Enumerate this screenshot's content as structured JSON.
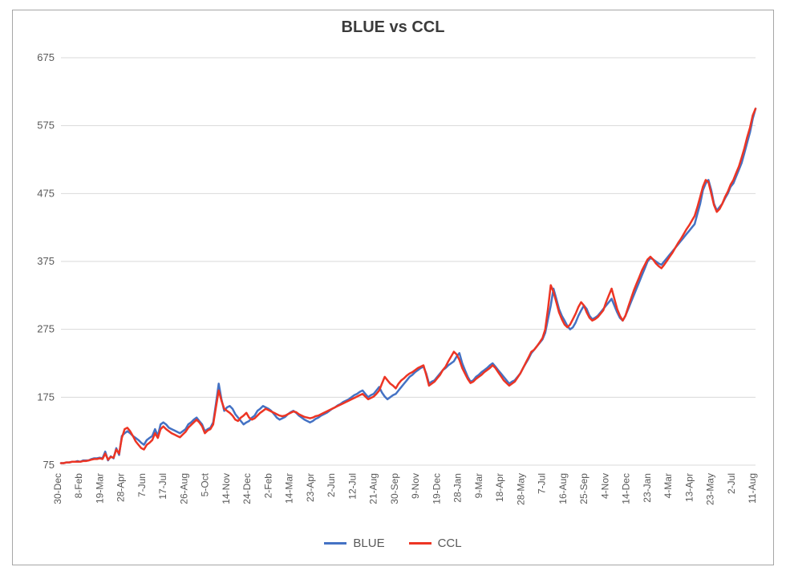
{
  "chart": {
    "type": "line",
    "title": "BLUE vs CCL",
    "title_fontsize": 20,
    "title_bold": true,
    "title_color": "#3b3b3b",
    "background_color": "#ffffff",
    "frame_border_color": "#a6a6a6",
    "plot": {
      "grid_color": "#d9d9d9",
      "grid_width": 1,
      "axis_color": "#d9d9d9",
      "xlim": [
        0,
        31
      ],
      "ylim": [
        75,
        675
      ],
      "yticks": [
        75,
        175,
        275,
        375,
        475,
        575,
        675
      ],
      "ytick_fontsize": 13,
      "ytick_color": "#595959",
      "xtick_fontsize": 12,
      "xtick_color": "#595959",
      "xtick_rotation": -90,
      "xticks": [
        "30-Dec",
        "8-Feb",
        "19-Mar",
        "28-Apr",
        "7-Jun",
        "17-Jul",
        "26-Aug",
        "5-Oct",
        "14-Nov",
        "24-Dec",
        "2-Feb",
        "14-Mar",
        "23-Apr",
        "2-Jun",
        "12-Jul",
        "21-Aug",
        "30-Sep",
        "9-Nov",
        "19-Dec",
        "28-Jan",
        "9-Mar",
        "18-Apr",
        "28-May",
        "7-Jul",
        "16-Aug",
        "25-Sep",
        "4-Nov",
        "14-Dec",
        "23-Jan",
        "4-Mar",
        "13-Apr",
        "23-May",
        "2-Jul",
        "11-Aug"
      ]
    },
    "series": [
      {
        "name": "BLUE",
        "color": "#4472c4",
        "line_width": 2.5,
        "data": [
          78,
          78,
          79,
          79,
          80,
          80,
          81,
          80,
          82,
          82,
          82,
          84,
          85,
          85,
          86,
          85,
          95,
          82,
          88,
          85,
          100,
          90,
          118,
          122,
          125,
          122,
          118,
          115,
          112,
          108,
          105,
          112,
          115,
          118,
          128,
          118,
          135,
          138,
          135,
          130,
          128,
          126,
          124,
          122,
          125,
          128,
          135,
          138,
          142,
          145,
          140,
          135,
          125,
          128,
          130,
          138,
          165,
          195,
          172,
          155,
          160,
          162,
          158,
          150,
          145,
          140,
          135,
          138,
          140,
          145,
          148,
          155,
          158,
          162,
          160,
          158,
          155,
          150,
          145,
          142,
          144,
          146,
          150,
          153,
          155,
          152,
          148,
          145,
          142,
          140,
          138,
          140,
          143,
          145,
          148,
          150,
          152,
          155,
          158,
          160,
          163,
          165,
          168,
          170,
          172,
          175,
          178,
          180,
          183,
          185,
          180,
          175,
          178,
          180,
          185,
          190,
          182,
          176,
          172,
          175,
          178,
          180,
          185,
          190,
          195,
          200,
          205,
          208,
          212,
          215,
          218,
          220,
          210,
          195,
          198,
          200,
          205,
          210,
          215,
          218,
          222,
          225,
          228,
          235,
          240,
          225,
          215,
          205,
          198,
          200,
          205,
          208,
          212,
          215,
          218,
          222,
          225,
          220,
          215,
          210,
          205,
          200,
          195,
          198,
          200,
          205,
          210,
          218,
          225,
          232,
          240,
          245,
          250,
          255,
          260,
          270,
          290,
          310,
          335,
          320,
          305,
          295,
          288,
          280,
          275,
          278,
          285,
          295,
          303,
          310,
          305,
          295,
          290,
          292,
          295,
          300,
          305,
          310,
          315,
          320,
          310,
          300,
          292,
          288,
          295,
          305,
          315,
          325,
          335,
          345,
          355,
          365,
          375,
          380,
          378,
          375,
          372,
          370,
          375,
          380,
          385,
          390,
          395,
          400,
          405,
          410,
          415,
          420,
          425,
          430,
          445,
          460,
          480,
          490,
          495,
          480,
          460,
          450,
          455,
          460,
          468,
          475,
          485,
          490,
          500,
          510,
          520,
          535,
          550,
          565,
          585,
          600
        ]
      },
      {
        "name": "CCL",
        "color": "#ed3524",
        "line_width": 2.5,
        "data": [
          78,
          78,
          79,
          79,
          80,
          80,
          80,
          80,
          81,
          81,
          82,
          83,
          84,
          84,
          85,
          84,
          92,
          83,
          87,
          86,
          98,
          92,
          115,
          128,
          130,
          125,
          118,
          110,
          105,
          100,
          98,
          105,
          108,
          112,
          122,
          115,
          128,
          132,
          128,
          125,
          122,
          120,
          118,
          116,
          120,
          124,
          130,
          134,
          138,
          142,
          138,
          132,
          122,
          126,
          128,
          135,
          160,
          185,
          170,
          158,
          155,
          152,
          148,
          142,
          140,
          145,
          148,
          152,
          145,
          142,
          144,
          148,
          152,
          155,
          158,
          156,
          154,
          152,
          150,
          148,
          147,
          148,
          150,
          152,
          154,
          153,
          150,
          148,
          146,
          145,
          144,
          145,
          147,
          148,
          150,
          152,
          154,
          156,
          158,
          160,
          162,
          164,
          166,
          168,
          170,
          172,
          174,
          176,
          178,
          180,
          176,
          172,
          174,
          176,
          180,
          185,
          195,
          205,
          200,
          195,
          192,
          188,
          195,
          200,
          203,
          207,
          210,
          212,
          215,
          218,
          220,
          222,
          208,
          192,
          195,
          198,
          203,
          208,
          215,
          220,
          228,
          235,
          242,
          238,
          230,
          218,
          210,
          202,
          196,
          198,
          202,
          205,
          208,
          212,
          215,
          218,
          222,
          218,
          212,
          206,
          200,
          196,
          192,
          195,
          198,
          204,
          210,
          218,
          226,
          234,
          242,
          245,
          250,
          256,
          262,
          275,
          305,
          340,
          330,
          315,
          300,
          290,
          282,
          278,
          282,
          290,
          298,
          308,
          315,
          310,
          300,
          292,
          288,
          290,
          293,
          298,
          303,
          315,
          325,
          335,
          320,
          305,
          295,
          288,
          295,
          308,
          320,
          332,
          342,
          352,
          362,
          370,
          378,
          382,
          378,
          372,
          368,
          365,
          370,
          376,
          382,
          388,
          395,
          402,
          408,
          415,
          422,
          428,
          435,
          442,
          455,
          470,
          485,
          495,
          492,
          475,
          458,
          448,
          452,
          460,
          470,
          478,
          488,
          495,
          505,
          515,
          528,
          542,
          558,
          572,
          590,
          600
        ]
      }
    ],
    "legend": {
      "position": "bottom",
      "items": [
        "BLUE",
        "CCL"
      ],
      "colors": [
        "#4472c4",
        "#ed3524"
      ],
      "fontsize": 15,
      "text_color": "#595959",
      "swatch_width": 28,
      "swatch_height": 3
    }
  }
}
